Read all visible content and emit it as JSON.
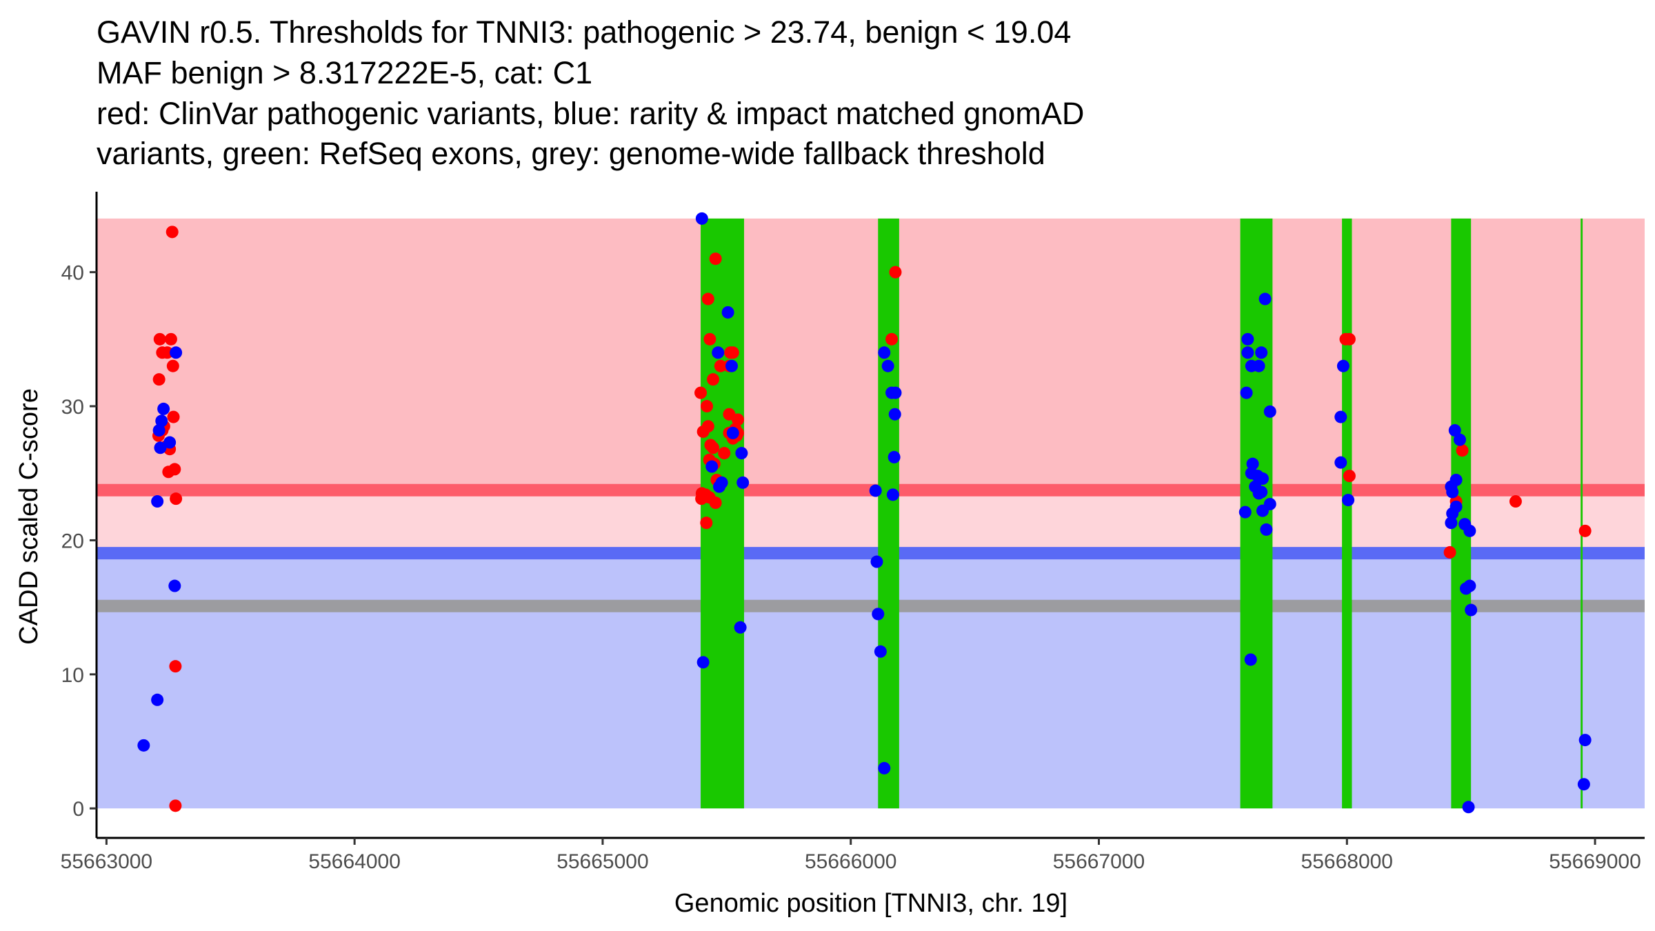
{
  "chart_data": {
    "type": "scatter",
    "title_lines": [
      "GAVIN r0.5. Thresholds for TNNI3: pathogenic > 23.74, benign < 19.04",
      "MAF benign > 8.317222E-5, cat: C1",
      "red: ClinVar pathogenic variants, blue: rarity & impact matched gnomAD",
      "variants, green: RefSeq exons, grey: genome-wide fallback threshold"
    ],
    "xlabel": "Genomic position [TNNI3, chr. 19]",
    "ylabel": "CADD scaled C-score",
    "xlim": [
      55662960,
      55669200
    ],
    "ylim": [
      -2.2,
      46
    ],
    "x_ticks": [
      55663000,
      55664000,
      55665000,
      55666000,
      55667000,
      55668000,
      55669000
    ],
    "x_tick_labels": [
      "55663000",
      "55664000",
      "55665000",
      "55666000",
      "55667000",
      "55668000",
      "55669000"
    ],
    "y_ticks": [
      0,
      10,
      20,
      30,
      40
    ],
    "y_tick_labels": [
      "0",
      "10",
      "20",
      "30",
      "40"
    ],
    "thresholds": {
      "pathogenic": 23.74,
      "benign": 19.04,
      "genome_wide_fallback": 15.1,
      "max_score": 44
    },
    "colors": {
      "pathogenic_region": "#fdbcc2",
      "pathogenic_line": "#fd5c6a",
      "gap_region": "#fed5da",
      "benign_line": "#5a6af5",
      "benign_region": "#bcc2fb",
      "fallback_line": "#9c9ca0",
      "exon": "#19c800",
      "pathogenic_point": "#ff0000",
      "benign_point": "#0000ff"
    },
    "exons": [
      {
        "start": 55665395,
        "end": 55665570
      },
      {
        "start": 55666110,
        "end": 55666195
      },
      {
        "start": 55667570,
        "end": 55667700
      },
      {
        "start": 55667980,
        "end": 55668020
      },
      {
        "start": 55668420,
        "end": 55668500
      },
      {
        "start": 55668942,
        "end": 55668950
      }
    ],
    "series": [
      {
        "name": "ClinVar pathogenic variants",
        "color": "#ff0000",
        "points": [
          [
            55663265,
            43
          ],
          [
            55663215,
            35
          ],
          [
            55663260,
            35
          ],
          [
            55663225,
            34
          ],
          [
            55663245,
            34
          ],
          [
            55663268,
            33
          ],
          [
            55663212,
            32
          ],
          [
            55663270,
            29.2
          ],
          [
            55663232,
            28.5
          ],
          [
            55663210,
            27.8
          ],
          [
            55663225,
            28.2
          ],
          [
            55663240,
            27
          ],
          [
            55663255,
            26.8
          ],
          [
            55663250,
            25.1
          ],
          [
            55663275,
            25.3
          ],
          [
            55663280,
            23.1
          ],
          [
            55663278,
            10.6
          ],
          [
            55663278,
            0.2
          ],
          [
            55665455,
            41
          ],
          [
            55665425,
            38
          ],
          [
            55665432,
            35
          ],
          [
            55665515,
            34
          ],
          [
            55665525,
            34
          ],
          [
            55665475,
            33
          ],
          [
            55665510,
            33
          ],
          [
            55665445,
            32
          ],
          [
            55665395,
            31
          ],
          [
            55665420,
            30
          ],
          [
            55665545,
            29
          ],
          [
            55665510,
            29.4
          ],
          [
            55665405,
            28.1
          ],
          [
            55665425,
            28.5
          ],
          [
            55665510,
            28
          ],
          [
            55665525,
            27.6
          ],
          [
            55665535,
            28.3
          ],
          [
            55665540,
            27.8
          ],
          [
            55665545,
            28
          ],
          [
            55665435,
            27.1
          ],
          [
            55665445,
            26.9
          ],
          [
            55665490,
            26.5
          ],
          [
            55665430,
            26
          ],
          [
            55665450,
            25.7
          ],
          [
            55665460,
            24.5
          ],
          [
            55665400,
            23.5
          ],
          [
            55665415,
            23.4
          ],
          [
            55665398,
            23.1
          ],
          [
            55665430,
            23.2
          ],
          [
            55665455,
            22.8
          ],
          [
            55665418,
            21.3
          ],
          [
            55666165,
            35
          ],
          [
            55666180,
            40
          ],
          [
            55667995,
            35
          ],
          [
            55668010,
            35
          ],
          [
            55668010,
            24.8
          ],
          [
            55668415,
            19.1
          ],
          [
            55668440,
            22.9
          ],
          [
            55668465,
            26.7
          ],
          [
            55668680,
            22.9
          ],
          [
            55668960,
            20.7
          ]
        ]
      },
      {
        "name": "rarity & impact matched gnomAD variants",
        "color": "#0000ff",
        "points": [
          [
            55663280,
            34
          ],
          [
            55663230,
            29.8
          ],
          [
            55663222,
            28.9
          ],
          [
            55663212,
            28.2
          ],
          [
            55663255,
            27.3
          ],
          [
            55663217,
            26.9
          ],
          [
            55663205,
            22.9
          ],
          [
            55663275,
            16.6
          ],
          [
            55663205,
            8.1
          ],
          [
            55663150,
            4.7
          ],
          [
            55665400,
            44
          ],
          [
            55665505,
            37
          ],
          [
            55665465,
            34
          ],
          [
            55665520,
            33
          ],
          [
            55665440,
            25.5
          ],
          [
            55665560,
            26.5
          ],
          [
            55665525,
            28
          ],
          [
            55665565,
            24.3
          ],
          [
            55665470,
            24
          ],
          [
            55665480,
            24.3
          ],
          [
            55665555,
            13.5
          ],
          [
            55665405,
            10.9
          ],
          [
            55666135,
            34
          ],
          [
            55666150,
            33
          ],
          [
            55666165,
            31
          ],
          [
            55666180,
            31
          ],
          [
            55666178,
            29.4
          ],
          [
            55666175,
            26.2
          ],
          [
            55666170,
            23.4
          ],
          [
            55666100,
            23.7
          ],
          [
            55666105,
            18.4
          ],
          [
            55666110,
            14.5
          ],
          [
            55666120,
            11.7
          ],
          [
            55666135,
            3
          ],
          [
            55667600,
            35
          ],
          [
            55667600,
            34
          ],
          [
            55667655,
            34
          ],
          [
            55667615,
            33
          ],
          [
            55667645,
            33
          ],
          [
            55667670,
            38
          ],
          [
            55667595,
            31
          ],
          [
            55667690,
            29.6
          ],
          [
            55667620,
            25.7
          ],
          [
            55667615,
            25
          ],
          [
            55667640,
            24.8
          ],
          [
            55667660,
            24.6
          ],
          [
            55667630,
            24
          ],
          [
            55667655,
            23.6
          ],
          [
            55667645,
            23.5
          ],
          [
            55667690,
            22.7
          ],
          [
            55667660,
            22.2
          ],
          [
            55667590,
            22.1
          ],
          [
            55667675,
            20.8
          ],
          [
            55667612,
            11.1
          ],
          [
            55667985,
            33
          ],
          [
            55667975,
            29.2
          ],
          [
            55667975,
            25.8
          ],
          [
            55668005,
            23
          ],
          [
            55668435,
            28.2
          ],
          [
            55668455,
            27.5
          ],
          [
            55668440,
            24.5
          ],
          [
            55668420,
            24
          ],
          [
            55668425,
            23.6
          ],
          [
            55668440,
            22.5
          ],
          [
            55668420,
            21.3
          ],
          [
            55668425,
            22
          ],
          [
            55668475,
            21.2
          ],
          [
            55668495,
            20.7
          ],
          [
            55668480,
            16.4
          ],
          [
            55668495,
            16.6
          ],
          [
            55668500,
            14.8
          ],
          [
            55668490,
            0.1
          ],
          [
            55668960,
            5.1
          ],
          [
            55668955,
            1.8
          ]
        ]
      }
    ]
  }
}
